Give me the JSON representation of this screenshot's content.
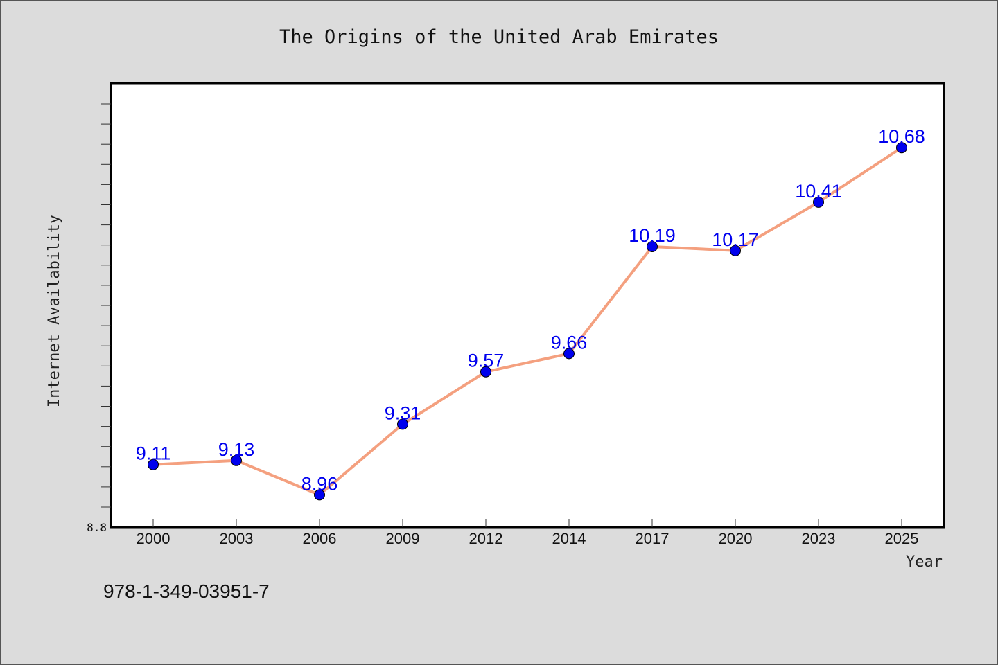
{
  "chart_data": {
    "type": "line",
    "title": "The Origins of the United Arab Emirates",
    "xlabel": "Year",
    "ylabel": "Internet Availability",
    "categories": [
      "2000",
      "2003",
      "2006",
      "2009",
      "2012",
      "2014",
      "2017",
      "2020",
      "2023",
      "2025"
    ],
    "series": [
      {
        "values": [
          9.11,
          9.13,
          8.96,
          9.31,
          9.57,
          9.66,
          10.19,
          10.17,
          10.41,
          10.68
        ],
        "labels": [
          "9.11",
          "9.13",
          "8.96",
          "9.31",
          "9.57",
          "9.66",
          "10.19",
          "10.17",
          "10.41",
          "10.68"
        ],
        "line_color": "#f4a07f",
        "marker_color": "#0000ee"
      }
    ],
    "ylim": [
      8.8,
      11.0
    ],
    "y_tick_labels": [
      "8.8"
    ],
    "grid": false
  },
  "footer": {
    "isbn": "978-1-349-03951-7"
  }
}
